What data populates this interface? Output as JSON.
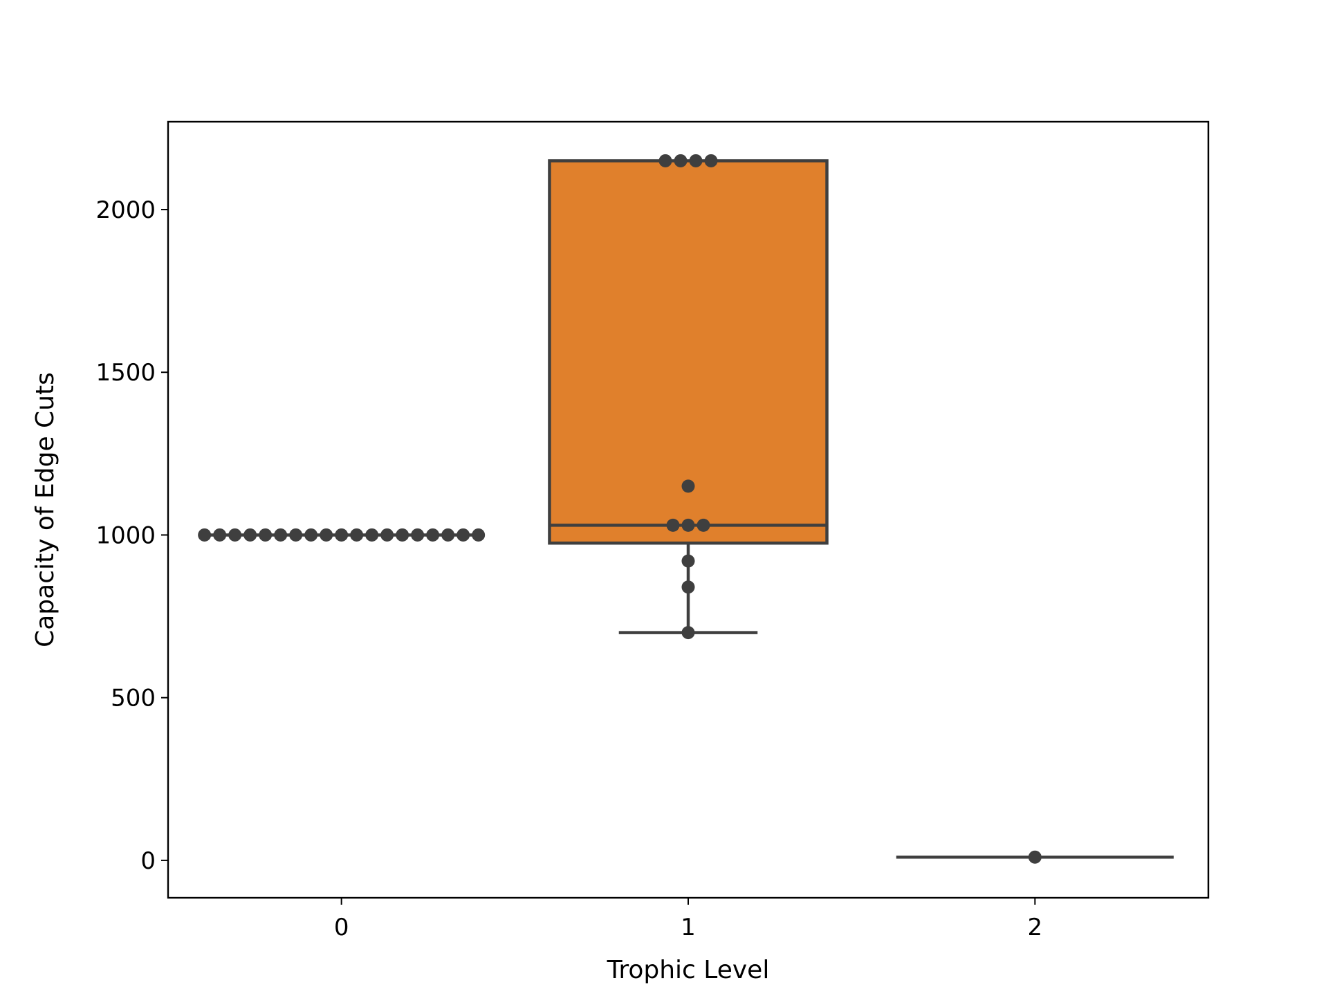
{
  "chart_data": {
    "type": "box",
    "title": "",
    "xlabel": "Trophic Level",
    "ylabel": "Capacity of Edge Cuts",
    "categories": [
      "0",
      "1",
      "2"
    ],
    "xlim": [
      -0.5,
      2.5
    ],
    "ylim": [
      -115,
      2270
    ],
    "yticks": [
      0,
      500,
      1000,
      1500,
      2000
    ],
    "grid": false,
    "legend": "none",
    "colors": {
      "box_fill": "#e0802c",
      "line": "#3f3f3f",
      "points": "#3f3f3f",
      "axes": "#000000"
    },
    "boxes": [
      {
        "category": "0",
        "min": 1000,
        "q1": 1000,
        "median": 1000,
        "q3": 1000,
        "max": 1000
      },
      {
        "category": "1",
        "min": 700,
        "q1": 975,
        "median": 1030,
        "q3": 2150,
        "max": 2150
      },
      {
        "category": "2",
        "min": 10,
        "q1": 10,
        "median": 10,
        "q3": 10,
        "max": 10
      }
    ],
    "points": [
      {
        "category": "0",
        "values": [
          1000,
          1000,
          1000,
          1000,
          1000,
          1000,
          1000,
          1000,
          1000,
          1000,
          1000,
          1000,
          1000,
          1000,
          1000,
          1000,
          1000,
          1000,
          1000
        ]
      },
      {
        "category": "1",
        "values": [
          2150,
          2150,
          2150,
          2150,
          1150,
          1030,
          1030,
          1030,
          920,
          840,
          700
        ]
      },
      {
        "category": "2",
        "values": [
          10
        ]
      }
    ]
  }
}
